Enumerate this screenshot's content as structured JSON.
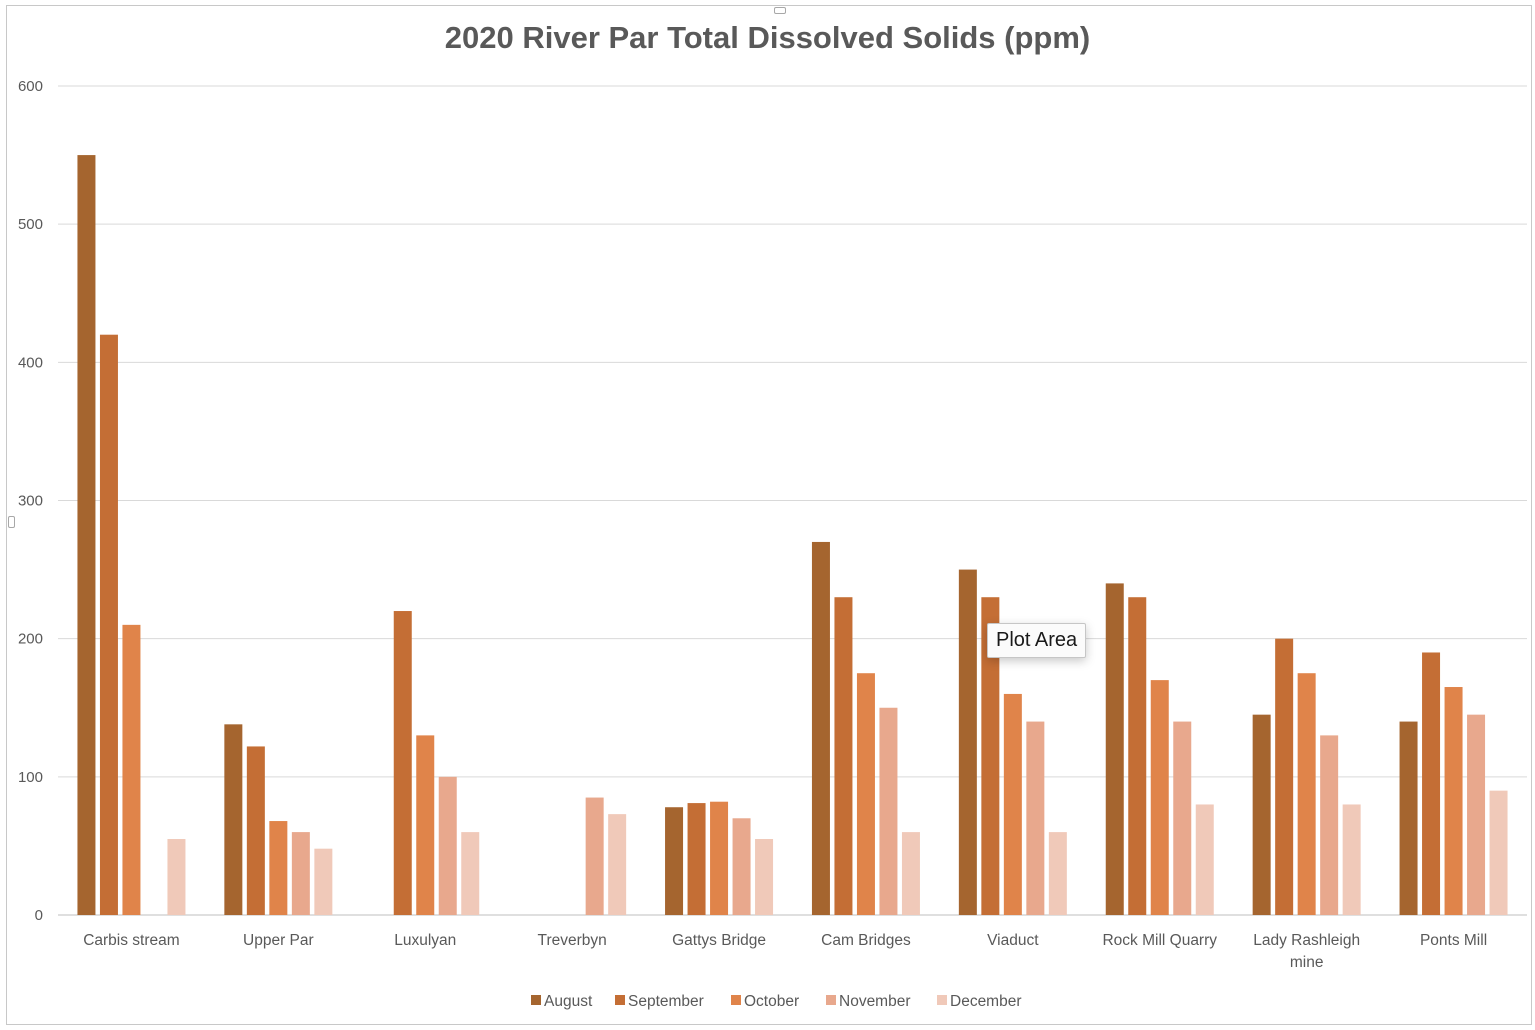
{
  "chart_data": {
    "type": "bar",
    "title": "2020 River Par Total Dissolved Solids (ppm)",
    "xlabel": "",
    "ylabel": "",
    "ylim": [
      0,
      600
    ],
    "yticks": [
      "0",
      "100",
      "200",
      "300",
      "400",
      "500",
      "600"
    ],
    "grid": true,
    "legend_position": "bottom",
    "categories": [
      [
        "Carbis stream"
      ],
      [
        "Upper Par"
      ],
      [
        "Luxulyan"
      ],
      [
        "Treverbyn"
      ],
      [
        "Gattys Bridge"
      ],
      [
        "Cam Bridges"
      ],
      [
        "Viaduct"
      ],
      [
        "Rock Mill Quarry"
      ],
      [
        "Lady Rashleigh",
        "mine"
      ],
      [
        "Ponts Mill"
      ]
    ],
    "series": [
      {
        "name": "August",
        "color": "#a5652f",
        "values": [
          550,
          138,
          null,
          null,
          78,
          270,
          250,
          240,
          145,
          140
        ]
      },
      {
        "name": "September",
        "color": "#c46e35",
        "values": [
          420,
          122,
          220,
          null,
          81,
          230,
          230,
          230,
          200,
          190
        ]
      },
      {
        "name": "October",
        "color": "#e0844a",
        "values": [
          210,
          68,
          130,
          null,
          82,
          175,
          160,
          170,
          175,
          165
        ]
      },
      {
        "name": "November",
        "color": "#e8a88d",
        "values": [
          null,
          60,
          100,
          85,
          70,
          150,
          140,
          140,
          130,
          145
        ]
      },
      {
        "name": "December",
        "color": "#f0c9b9",
        "values": [
          55,
          48,
          60,
          73,
          55,
          60,
          60,
          80,
          80,
          90
        ]
      }
    ]
  },
  "tooltip": {
    "text": "Plot Area"
  }
}
